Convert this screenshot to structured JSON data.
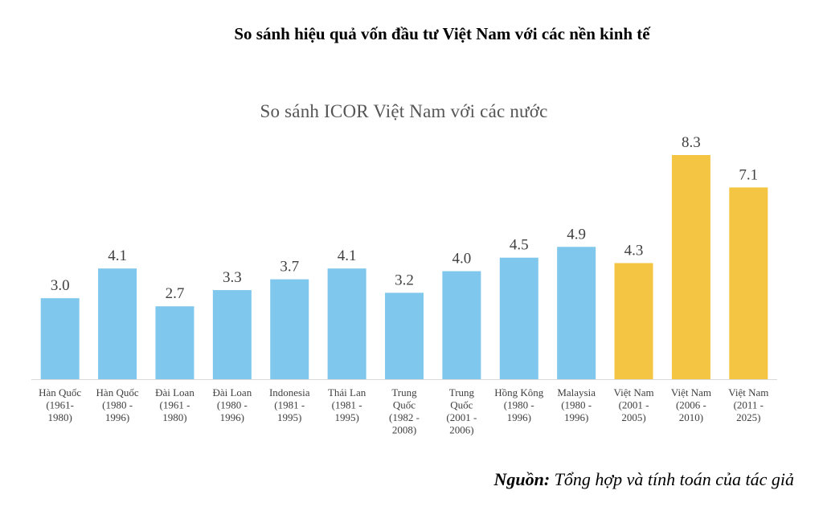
{
  "page_title": "So sánh hiệu quả vốn đầu tư Việt Nam với các nền kinh tế",
  "source": {
    "label": "Nguồn:",
    "text": "Tổng hợp và tính toán của tác giả"
  },
  "colors": {
    "bar_default": "#7FC7EC",
    "bar_highlight": "#F4C542",
    "axis": "#d9d9d9",
    "label_text": "#404040"
  },
  "chart_data": {
    "type": "bar",
    "title": "So sánh ICOR Việt Nam với các nước",
    "xlabel": "",
    "ylabel": "",
    "grid": false,
    "ylim": [
      0,
      8.3
    ],
    "categories": [
      [
        "Hàn Quốc",
        "(1961-",
        "1980)"
      ],
      [
        "Hàn Quốc",
        "(1980 -",
        "1996)"
      ],
      [
        "Đài Loan",
        "(1961 -",
        "1980)"
      ],
      [
        "Đài Loan",
        "(1980 -",
        "1996)"
      ],
      [
        "Indonesia",
        "(1981 -",
        "1995)"
      ],
      [
        "Thái Lan",
        "(1981 -",
        "1995)"
      ],
      [
        "Trung",
        "Quốc",
        "(1982 -",
        "2008)"
      ],
      [
        "Trung",
        "Quốc",
        "(2001 -",
        "2006)"
      ],
      [
        "Hồng Kông",
        "(1980 -",
        "1996)"
      ],
      [
        "Malaysia",
        "(1980 -",
        "1996)"
      ],
      [
        "Việt Nam",
        "(2001 -",
        "2005)"
      ],
      [
        "Việt Nam",
        "(2006 -",
        "2010)"
      ],
      [
        "Việt Nam",
        "(2011 -",
        "2025)"
      ]
    ],
    "values": [
      3.0,
      4.1,
      2.7,
      3.3,
      3.7,
      4.1,
      3.2,
      4.0,
      4.5,
      4.9,
      4.3,
      8.3,
      7.1
    ],
    "value_labels": [
      "3.0",
      "4.1",
      "2.7",
      "3.3",
      "3.7",
      "4.1",
      "3.2",
      "4.0",
      "4.5",
      "4.9",
      "4.3",
      "8.3",
      "7.1"
    ],
    "highlight": [
      false,
      false,
      false,
      false,
      false,
      false,
      false,
      false,
      false,
      false,
      true,
      true,
      true
    ]
  }
}
